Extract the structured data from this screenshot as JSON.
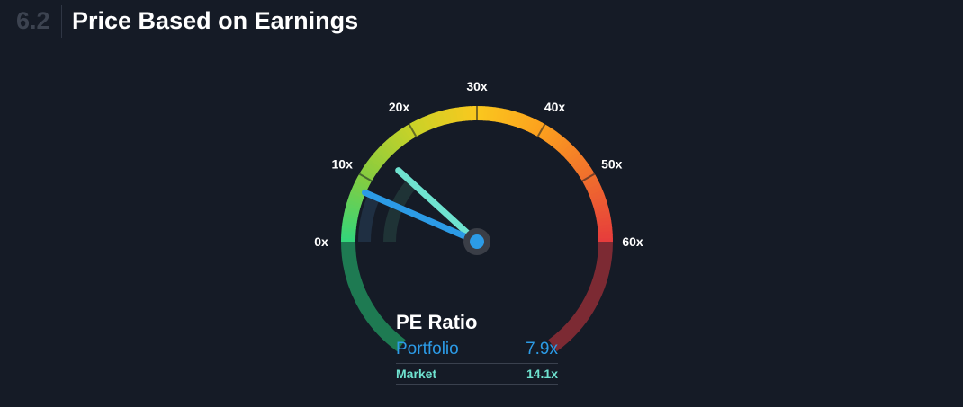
{
  "header": {
    "section_number": "6.2",
    "title": "Price Based on Earnings"
  },
  "chart_data": {
    "type": "gauge",
    "title": "PE Ratio",
    "min": 0,
    "max": 60,
    "ticks": [
      0,
      10,
      20,
      30,
      40,
      50,
      60
    ],
    "tick_labels": [
      "0x",
      "10x",
      "20x",
      "30x",
      "40x",
      "50x",
      "60x"
    ],
    "series": [
      {
        "name": "Portfolio",
        "value": 7.9,
        "label": "7.9x",
        "color": "#2c9be6"
      },
      {
        "name": "Market",
        "value": 14.1,
        "label": "14.1x",
        "color": "#6fe3d0"
      }
    ]
  }
}
